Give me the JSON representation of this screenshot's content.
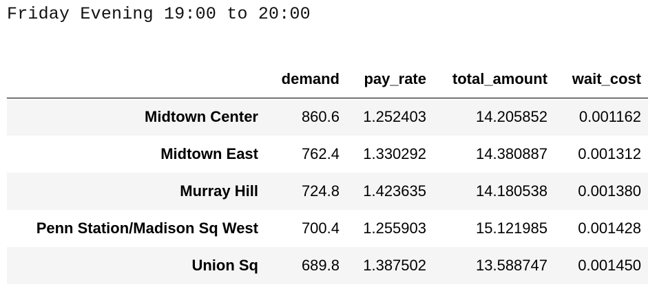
{
  "caption": "Friday Evening 19:00 to 20:00",
  "table": {
    "index_header": "",
    "columns": [
      "demand",
      "pay_rate",
      "total_amount",
      "wait_cost"
    ],
    "rows": [
      {
        "index": "Midtown Center",
        "values": [
          "860.6",
          "1.252403",
          "14.205852",
          "0.001162"
        ]
      },
      {
        "index": "Midtown East",
        "values": [
          "762.4",
          "1.330292",
          "14.380887",
          "0.001312"
        ]
      },
      {
        "index": "Murray Hill",
        "values": [
          "724.8",
          "1.423635",
          "14.180538",
          "0.001380"
        ]
      },
      {
        "index": "Penn Station/Madison Sq West",
        "values": [
          "700.4",
          "1.255903",
          "15.121985",
          "0.001428"
        ]
      },
      {
        "index": "Union Sq",
        "values": [
          "689.8",
          "1.387502",
          "13.588747",
          "0.001450"
        ]
      }
    ]
  }
}
